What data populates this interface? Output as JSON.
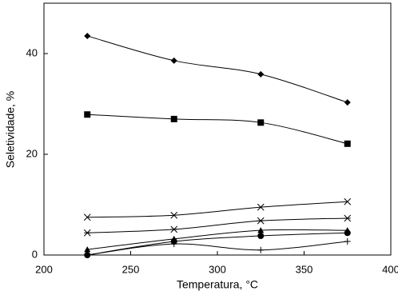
{
  "chart_data": {
    "type": "line",
    "x_label": "Temperatura, °C",
    "y_label": "Seletividade, %",
    "x": [
      225,
      275,
      325,
      375
    ],
    "xlim": [
      200,
      400
    ],
    "xticks": [
      200,
      250,
      300,
      350,
      400
    ],
    "ylim": [
      0,
      50
    ],
    "yticks": [
      0,
      20,
      40
    ],
    "smooth": true,
    "series": [
      {
        "color": "#000000",
        "marker": "diamond",
        "values": [
          43.5,
          38.6,
          35.9,
          30.3
        ]
      },
      {
        "color": "#000000",
        "marker": "square",
        "values": [
          27.9,
          27.0,
          26.3,
          22.1
        ]
      },
      {
        "color": "#000000",
        "marker": "x",
        "values": [
          7.5,
          7.9,
          9.5,
          10.6
        ]
      },
      {
        "color": "#000000",
        "marker": "asterisk",
        "values": [
          4.4,
          5.1,
          6.8,
          7.3
        ]
      },
      {
        "color": "#000000",
        "marker": "triangle",
        "values": [
          1.1,
          3.2,
          4.9,
          4.9
        ]
      },
      {
        "color": "#000000",
        "marker": "circle",
        "values": [
          0,
          2.7,
          3.8,
          4.4
        ]
      },
      {
        "color": "#000000",
        "marker": "plus",
        "values": [
          0,
          2.2,
          1.0,
          2.7
        ]
      }
    ]
  }
}
